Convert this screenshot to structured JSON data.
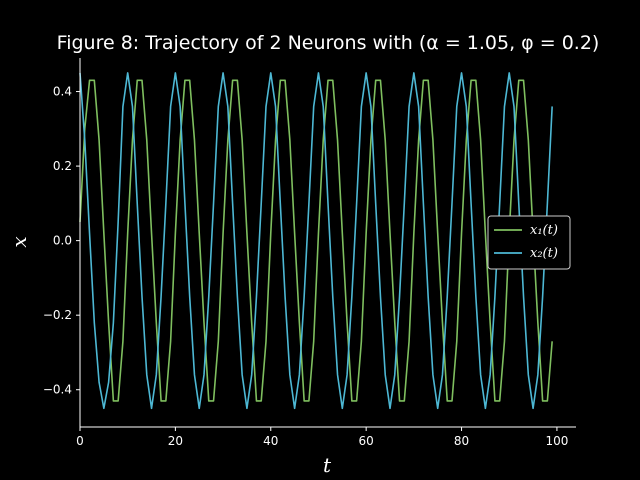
{
  "chart_data": {
    "type": "line",
    "title": "Figure 8: Trajectory of 2 Neurons with (α = 1.05, φ = 0.2)",
    "xlabel": "t",
    "ylabel": "x",
    "xlim": [
      0,
      104
    ],
    "ylim": [
      -0.5,
      0.49
    ],
    "xticks": [
      0,
      20,
      40,
      60,
      80,
      100
    ],
    "yticks": [
      -0.4,
      -0.2,
      0.0,
      0.2,
      0.4
    ],
    "ytick_labels": [
      "−0.4",
      "−0.2",
      "0.0",
      "0.2",
      "0.4"
    ],
    "grid": false,
    "legend": "center-right",
    "x": [
      0,
      1,
      2,
      3,
      4,
      5,
      6,
      7,
      8,
      9,
      10,
      11,
      12,
      13,
      14,
      15,
      16,
      17,
      18,
      19,
      20,
      21,
      22,
      23,
      24,
      25,
      26,
      27,
      28,
      29,
      30,
      31,
      32,
      33,
      34,
      35,
      36,
      37,
      38,
      39,
      40,
      41,
      42,
      43,
      44,
      45,
      46,
      47,
      48,
      49,
      50,
      51,
      52,
      53,
      54,
      55,
      56,
      57,
      58,
      59,
      60,
      61,
      62,
      63,
      64,
      65,
      66,
      67,
      68,
      69,
      70,
      71,
      72,
      73,
      74,
      75,
      76,
      77,
      78,
      79,
      80,
      81,
      82,
      83,
      84,
      85,
      86,
      87,
      88,
      89,
      90,
      91,
      92,
      93,
      94,
      95,
      96,
      97,
      98,
      99
    ],
    "series": [
      {
        "name": "x₁(t)",
        "color": "#7fbf5f",
        "values": [
          0.05,
          0.3,
          0.43,
          0.43,
          0.27,
          0.02,
          -0.22,
          -0.43,
          -0.43,
          -0.27,
          0.02,
          0.27,
          0.43,
          0.43,
          0.27,
          0.02,
          -0.22,
          -0.43,
          -0.43,
          -0.27,
          0.02,
          0.27,
          0.43,
          0.43,
          0.27,
          0.02,
          -0.22,
          -0.43,
          -0.43,
          -0.27,
          0.02,
          0.27,
          0.43,
          0.43,
          0.27,
          0.02,
          -0.22,
          -0.43,
          -0.43,
          -0.27,
          0.02,
          0.27,
          0.43,
          0.43,
          0.27,
          0.02,
          -0.22,
          -0.43,
          -0.43,
          -0.27,
          0.02,
          0.27,
          0.43,
          0.43,
          0.27,
          0.02,
          -0.22,
          -0.43,
          -0.43,
          -0.27,
          0.02,
          0.27,
          0.43,
          0.43,
          0.27,
          0.02,
          -0.22,
          -0.43,
          -0.43,
          -0.27,
          0.02,
          0.27,
          0.43,
          0.43,
          0.27,
          0.02,
          -0.22,
          -0.43,
          -0.43,
          -0.27,
          0.02,
          0.27,
          0.43,
          0.43,
          0.27,
          0.02,
          -0.22,
          -0.43,
          -0.43,
          -0.27,
          0.02,
          0.27,
          0.43,
          0.43,
          0.27,
          0.02,
          -0.22,
          -0.43,
          -0.43,
          -0.27
        ]
      },
      {
        "name": "x₂(t)",
        "color": "#4db8d4",
        "values": [
          0.45,
          0.27,
          0.02,
          -0.22,
          -0.38,
          -0.45,
          -0.38,
          -0.22,
          0.05,
          0.36,
          0.45,
          0.36,
          0.1,
          -0.15,
          -0.36,
          -0.45,
          -0.36,
          -0.15,
          0.1,
          0.36,
          0.45,
          0.36,
          0.1,
          -0.15,
          -0.36,
          -0.45,
          -0.36,
          -0.15,
          0.1,
          0.36,
          0.45,
          0.36,
          0.1,
          -0.15,
          -0.36,
          -0.45,
          -0.36,
          -0.15,
          0.1,
          0.36,
          0.45,
          0.36,
          0.1,
          -0.15,
          -0.36,
          -0.45,
          -0.36,
          -0.15,
          0.1,
          0.36,
          0.45,
          0.36,
          0.1,
          -0.15,
          -0.36,
          -0.45,
          -0.36,
          -0.15,
          0.1,
          0.36,
          0.45,
          0.36,
          0.1,
          -0.15,
          -0.36,
          -0.45,
          -0.36,
          -0.15,
          0.1,
          0.36,
          0.45,
          0.36,
          0.1,
          -0.15,
          -0.36,
          -0.45,
          -0.36,
          -0.15,
          0.1,
          0.36,
          0.45,
          0.36,
          0.1,
          -0.15,
          -0.36,
          -0.45,
          -0.36,
          -0.15,
          0.1,
          0.36,
          0.45,
          0.36,
          0.1,
          -0.15,
          -0.36,
          -0.45,
          -0.36,
          -0.15,
          0.1,
          0.36
        ]
      }
    ]
  }
}
